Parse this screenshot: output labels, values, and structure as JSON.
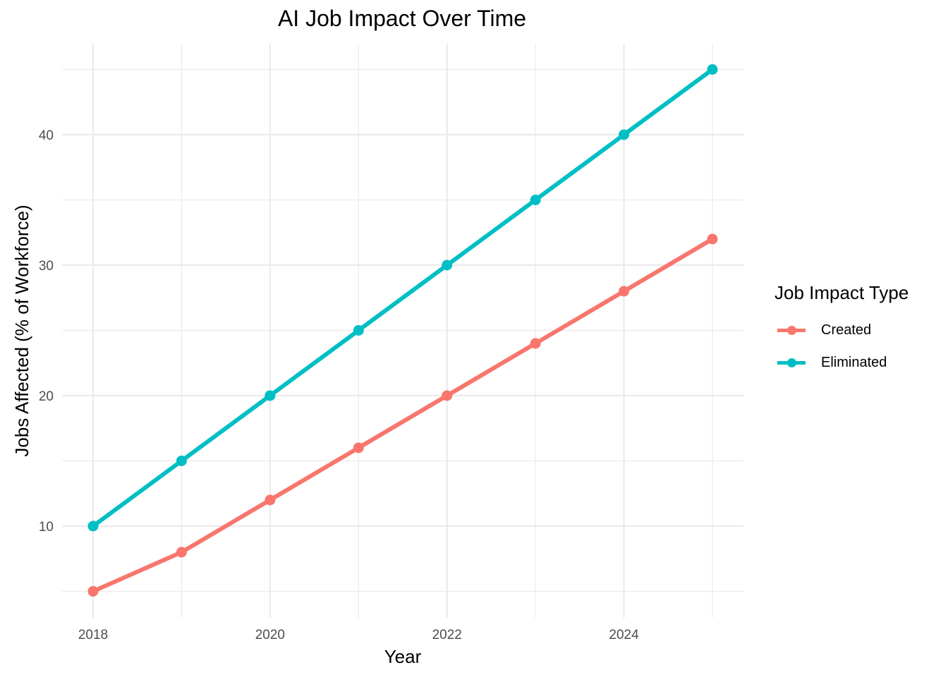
{
  "chart_data": {
    "type": "line",
    "title": "AI Job Impact Over Time",
    "xlabel": "Year",
    "ylabel": "Jobs Affected (% of Workforce)",
    "x": [
      2018,
      2019,
      2020,
      2021,
      2022,
      2023,
      2024,
      2025
    ],
    "x_ticks": [
      "2018",
      "2020",
      "2022",
      "2024"
    ],
    "y_ticks": [
      "10",
      "20",
      "30",
      "40"
    ],
    "ylim": [
      3.5,
      47
    ],
    "xlim": [
      2017.65,
      2025.35
    ],
    "grid": true,
    "legend_position": "right",
    "legend_title": "Job Impact Type",
    "series": [
      {
        "name": "Created",
        "color": "#F8766D",
        "values": [
          5,
          8,
          12,
          16,
          20,
          24,
          28,
          32
        ]
      },
      {
        "name": "Eliminated",
        "color": "#00BFC4",
        "values": [
          10,
          15,
          20,
          25,
          30,
          35,
          40,
          45
        ]
      }
    ]
  }
}
